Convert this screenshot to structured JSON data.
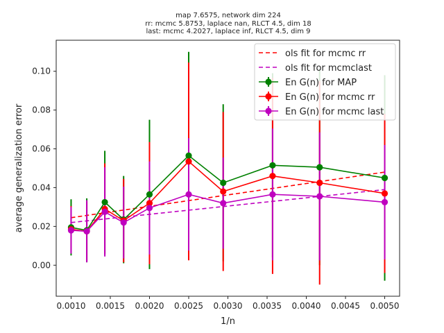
{
  "chart_data": {
    "type": "line",
    "title_lines": [
      "map 7.6575, network dim 224",
      "rr: mcmc 5.8753, laplace nan, RLCT 4.5, dim 18",
      "last: mcmc 4.2027, laplace inf, RLCT 4.5, dim 9"
    ],
    "xlabel": "1/n",
    "ylabel": "average generalization error",
    "xlim": [
      0.00081,
      0.00519
    ],
    "ylim": [
      -0.016,
      0.116
    ],
    "x_ticks": [
      {
        "value": 0.001,
        "label": "0.0010"
      },
      {
        "value": 0.0015,
        "label": "0.0015"
      },
      {
        "value": 0.002,
        "label": "0.0020"
      },
      {
        "value": 0.0025,
        "label": "0.0025"
      },
      {
        "value": 0.003,
        "label": "0.0030"
      },
      {
        "value": 0.0035,
        "label": "0.0035"
      },
      {
        "value": 0.004,
        "label": "0.0040"
      },
      {
        "value": 0.0045,
        "label": "0.0045"
      },
      {
        "value": 0.005,
        "label": "0.0050"
      }
    ],
    "y_ticks": [
      {
        "value": 0.0,
        "label": "0.00"
      },
      {
        "value": 0.02,
        "label": "0.02"
      },
      {
        "value": 0.04,
        "label": "0.04"
      },
      {
        "value": 0.06,
        "label": "0.06"
      },
      {
        "value": 0.08,
        "label": "0.08"
      },
      {
        "value": 0.1,
        "label": "0.10"
      }
    ],
    "x": [
      0.001,
      0.0012,
      0.00143,
      0.00167,
      0.002,
      0.0025,
      0.00294,
      0.00357,
      0.00417,
      0.005
    ],
    "series": [
      {
        "name": "En G(n) for MAP",
        "color": "#008000",
        "values": [
          0.0195,
          0.018,
          0.0325,
          0.0235,
          0.0365,
          0.0565,
          0.0425,
          0.0515,
          0.0505,
          0.045
        ],
        "err": [
          0.0145,
          0.0165,
          0.0265,
          0.0225,
          0.0385,
          0.0535,
          0.0405,
          0.0475,
          0.0505,
          0.053
        ]
      },
      {
        "name": "En G(n) for mcmc rr",
        "color": "#ff0000",
        "values": [
          0.0185,
          0.0175,
          0.029,
          0.023,
          0.032,
          0.0535,
          0.038,
          0.046,
          0.0425,
          0.037
        ],
        "err": [
          0.012,
          0.0155,
          0.0235,
          0.0215,
          0.0315,
          0.051,
          0.041,
          0.0505,
          0.0525,
          0.041
        ]
      },
      {
        "name": "En G(n) for mcmc last",
        "color": "#bf00bf",
        "values": [
          0.018,
          0.0175,
          0.0275,
          0.022,
          0.0295,
          0.0365,
          0.032,
          0.0365,
          0.0355,
          0.0325
        ],
        "err": [
          0.012,
          0.016,
          0.023,
          0.0185,
          0.024,
          0.029,
          0.0235,
          0.034,
          0.033,
          0.0295
        ]
      }
    ],
    "fit_lines": [
      {
        "name": "ols fit for mcmc rr",
        "color": "#ff0000",
        "x": [
          0.001,
          0.005
        ],
        "y": [
          0.0245,
          0.048
        ]
      },
      {
        "name": "ols fit for mcmclast",
        "color": "#bf00bf",
        "x": [
          0.001,
          0.005
        ],
        "y": [
          0.022,
          0.039
        ]
      }
    ],
    "legend_position": "top-right",
    "grid": false
  }
}
